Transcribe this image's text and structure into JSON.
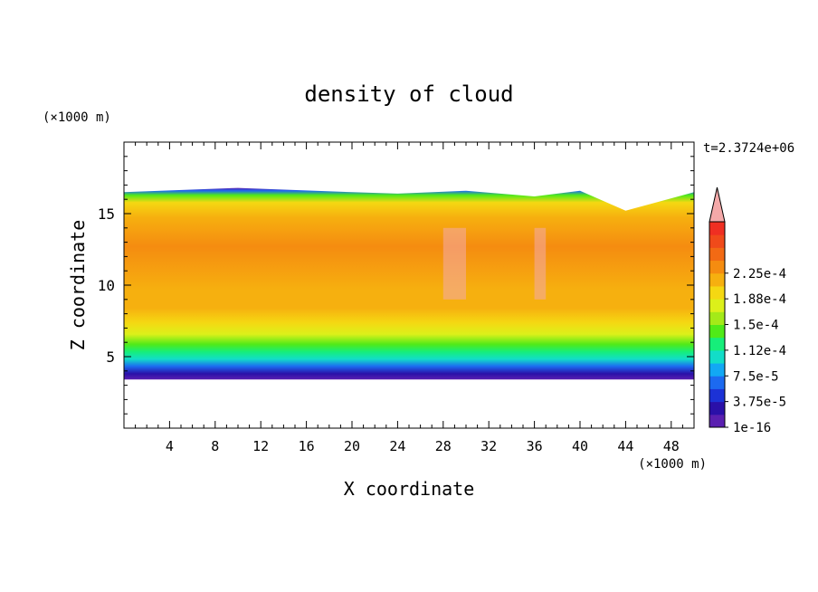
{
  "chart_data": {
    "type": "heatmap",
    "title": "density of cloud",
    "xlabel": "X coordinate",
    "ylabel": "Z coordinate",
    "x_unit": "(×1000 m)",
    "y_unit": "(×1000 m)",
    "time_label": "t=2.3724e+06",
    "xlim": [
      0,
      50
    ],
    "ylim": [
      0,
      20
    ],
    "x_ticks": [
      "4",
      "8",
      "12",
      "16",
      "20",
      "24",
      "28",
      "32",
      "36",
      "40",
      "44",
      "48"
    ],
    "y_ticks": [
      "5",
      "10",
      "15"
    ],
    "field": {
      "cloud_base_z": 3.4,
      "cloud_top_z": 16.5,
      "top_profile": [
        [
          0,
          16.5
        ],
        [
          10,
          16.8
        ],
        [
          20,
          16.5
        ],
        [
          24,
          16.4
        ],
        [
          30,
          16.6
        ],
        [
          36,
          16.2
        ],
        [
          40,
          16.6
        ],
        [
          44,
          15.2
        ],
        [
          50,
          16.5
        ]
      ],
      "vertical_profile": [
        {
          "z": 3.4,
          "value": 1e-16
        },
        {
          "z": 3.8,
          "value": 3.75e-05
        },
        {
          "z": 4.3,
          "value": 6.5e-05
        },
        {
          "z": 4.8,
          "value": 9.5e-05
        },
        {
          "z": 5.3,
          "value": 0.00012
        },
        {
          "z": 5.8,
          "value": 0.000145
        },
        {
          "z": 6.5,
          "value": 0.00017
        },
        {
          "z": 7.3,
          "value": 0.00019
        },
        {
          "z": 8.3,
          "value": 0.00021
        },
        {
          "z": 9.5,
          "value": 0.000225
        },
        {
          "z": 12.5,
          "value": 0.00023
        },
        {
          "z": 14.5,
          "value": 0.000215
        },
        {
          "z": 15.5,
          "value": 0.00019
        },
        {
          "z": 16.0,
          "value": 0.00014
        },
        {
          "z": 16.3,
          "value": 7.5e-05
        },
        {
          "z": 16.5,
          "value": 1e-16
        }
      ],
      "max_patches_x": [
        [
          28,
          30
        ],
        [
          36,
          37
        ]
      ]
    },
    "colorbar": {
      "labels": [
        "1e-16",
        "3.75e-5",
        "7.5e-5",
        "1.12e-4",
        "1.5e-4",
        "1.88e-4",
        "2.25e-4"
      ],
      "colors": [
        "#5a1fb0",
        "#2a10a8",
        "#1c32d6",
        "#1c6af0",
        "#12a8f4",
        "#12ddc8",
        "#16ee7a",
        "#50ea18",
        "#a4ea18",
        "#dcf01a",
        "#f5d812",
        "#f6b00f",
        "#f58c10",
        "#f26a14",
        "#f04a1a",
        "#ef2f22"
      ],
      "over_color": "#f4a9a9"
    }
  }
}
